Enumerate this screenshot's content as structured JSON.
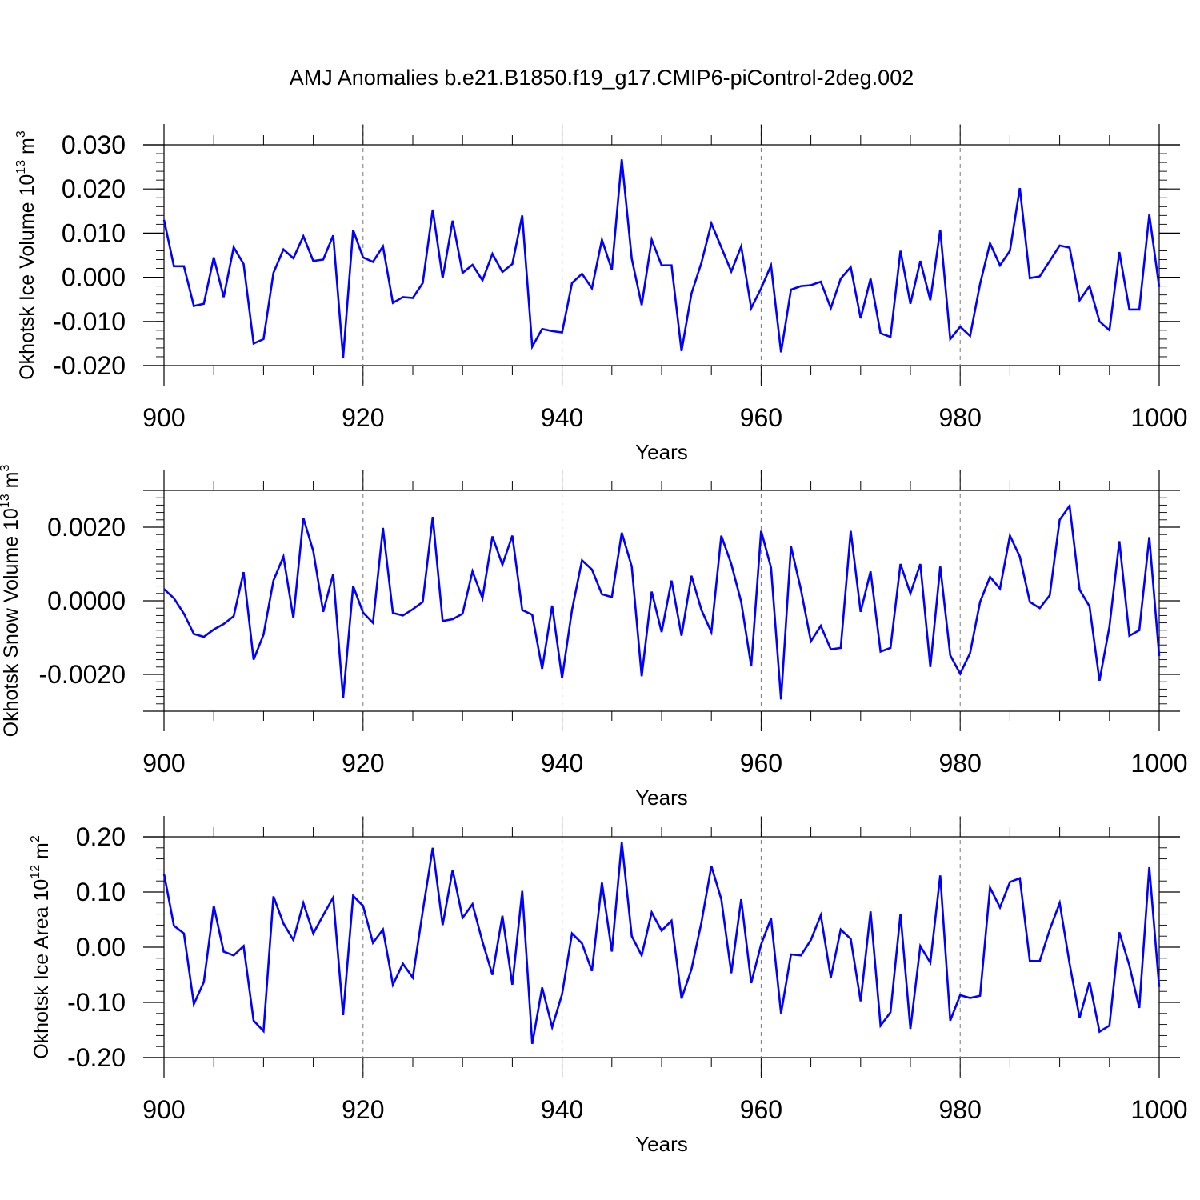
{
  "title": "AMJ Anomalies b.e21.B1850.f19_g17.CMIP6-piControl-2deg.002",
  "line_color": "#0000ff",
  "chart_data": [
    {
      "type": "line",
      "ylabel_main": "Okhotsk Ice Volume 10",
      "ylabel_exp": "13",
      "ylabel_unit": " m",
      "ylabel_unit_exp": "3",
      "xlabel": "Years",
      "xlim": [
        900,
        1000
      ],
      "ylim": [
        -0.02,
        0.03
      ],
      "xticks": [
        "900",
        "920",
        "940",
        "960",
        "980",
        "1000"
      ],
      "yticks": [
        {
          "v": 0.03,
          "label": "0.030"
        },
        {
          "v": 0.02,
          "label": "0.020"
        },
        {
          "v": 0.01,
          "label": "0.010"
        },
        {
          "v": 0.0,
          "label": "0.000"
        },
        {
          "v": -0.01,
          "label": "-0.010"
        },
        {
          "v": -0.02,
          "label": "-0.020"
        }
      ],
      "x_start": 900,
      "values": [
        0.013,
        0.0025,
        0.0025,
        -0.0065,
        -0.006,
        0.0045,
        -0.0045,
        0.0068,
        0.003,
        -0.015,
        -0.014,
        0.001,
        0.0063,
        0.0043,
        0.0093,
        0.0037,
        0.004,
        0.0095,
        -0.0182,
        0.0107,
        0.0045,
        0.0035,
        0.007,
        -0.0058,
        -0.0045,
        -0.0047,
        -0.0013,
        0.0153,
        -0.0002,
        0.0128,
        0.001,
        0.0028,
        -0.0007,
        0.0053,
        0.0012,
        0.003,
        0.014,
        -0.0157,
        -0.0117,
        -0.0122,
        -0.0125,
        -0.0013,
        0.0008,
        -0.0025,
        0.0085,
        0.0017,
        0.0267,
        0.0042,
        -0.0063,
        0.0085,
        0.0027,
        0.0027,
        -0.0167,
        -0.0037,
        0.0033,
        0.0122,
        0.0068,
        0.0013,
        0.007,
        -0.007,
        -0.0025,
        0.0027,
        -0.017,
        -0.0028,
        -0.002,
        -0.0018,
        -0.001,
        -0.007,
        -0.0003,
        0.0023,
        -0.0093,
        -0.0003,
        -0.0127,
        -0.0135,
        0.006,
        -0.006,
        0.0037,
        -0.0052,
        0.0107,
        -0.014,
        -0.0112,
        -0.0133,
        -0.0015,
        0.0077,
        0.0027,
        0.006,
        0.0202,
        -0.0002,
        0.0002,
        0.0037,
        0.0072,
        0.0067,
        -0.0052,
        -0.002,
        -0.01,
        -0.012,
        0.0057,
        -0.0073,
        -0.0073,
        0.0142,
        -0.0022
      ]
    },
    {
      "type": "line",
      "ylabel_main": "Okhotsk Snow Volume 10",
      "ylabel_exp": "13",
      "ylabel_unit": " m",
      "ylabel_unit_exp": "3",
      "xlabel": "Years",
      "xlim": [
        900,
        1000
      ],
      "ylim": [
        -0.003,
        0.003
      ],
      "xticks": [
        "900",
        "920",
        "940",
        "960",
        "980",
        "1000"
      ],
      "yticks": [
        {
          "v": 0.002,
          "label": "0.0020"
        },
        {
          "v": 0.0,
          "label": "0.0000"
        },
        {
          "v": -0.002,
          "label": "-0.0020"
        }
      ],
      "x_start": 900,
      "values": [
        0.00032,
        7e-05,
        -0.00035,
        -0.0009,
        -0.00098,
        -0.00078,
        -0.00063,
        -0.00042,
        0.00078,
        -0.0016,
        -0.00092,
        0.00055,
        0.0012,
        -0.00047,
        0.00225,
        0.00135,
        -0.0003,
        0.00073,
        -0.00265,
        0.0004,
        -0.00032,
        -0.0006,
        0.00198,
        -0.00033,
        -0.0004,
        -0.00023,
        -3e-05,
        0.00228,
        -0.00055,
        -0.0005,
        -0.00035,
        0.0008,
        7e-05,
        0.00175,
        0.00098,
        0.00177,
        -0.00025,
        -0.00038,
        -0.00185,
        -0.00013,
        -0.0021,
        -0.00025,
        0.0011,
        0.00085,
        0.00018,
        0.0001,
        0.00185,
        0.00093,
        -0.00205,
        0.00025,
        -0.00085,
        0.00055,
        -0.00095,
        0.00068,
        -0.00025,
        -0.00085,
        0.00177,
        0.001,
        -3e-05,
        -0.00178,
        0.0019,
        0.0009,
        -0.00268,
        0.00148,
        0.0003,
        -0.0011,
        -0.00068,
        -0.00132,
        -0.00128,
        0.0019,
        -0.0003,
        0.0008,
        -0.00138,
        -0.00128,
        0.001,
        0.0002,
        0.001,
        -0.0018,
        0.00093,
        -0.00148,
        -0.00198,
        -0.00142,
        -3e-05,
        0.00065,
        0.00033,
        0.00177,
        0.0012,
        -3e-05,
        -0.0002,
        0.00015,
        0.0022,
        0.00258,
        0.0003,
        -0.00015,
        -0.00217,
        -0.0007,
        0.00162,
        -0.00095,
        -0.0008,
        0.00173,
        -0.0015
      ]
    },
    {
      "type": "line",
      "ylabel_main": "Okhotsk Ice Area 10",
      "ylabel_exp": "12",
      "ylabel_unit": " m",
      "ylabel_unit_exp": "2",
      "xlabel": "Years",
      "xlim": [
        900,
        1000
      ],
      "ylim": [
        -0.2,
        0.2
      ],
      "xticks": [
        "900",
        "920",
        "940",
        "960",
        "980",
        "1000"
      ],
      "yticks": [
        {
          "v": 0.2,
          "label": "0.20"
        },
        {
          "v": 0.1,
          "label": "0.10"
        },
        {
          "v": 0.0,
          "label": "0.00"
        },
        {
          "v": -0.1,
          "label": "-0.10"
        },
        {
          "v": -0.2,
          "label": "-0.20"
        }
      ],
      "x_start": 900,
      "values": [
        0.133,
        0.039,
        0.025,
        -0.103,
        -0.063,
        0.075,
        -0.008,
        -0.015,
        0.002,
        -0.133,
        -0.152,
        0.092,
        0.043,
        0.013,
        0.08,
        0.025,
        0.058,
        0.09,
        -0.123,
        0.093,
        0.075,
        0.008,
        0.032,
        -0.068,
        -0.03,
        -0.055,
        0.065,
        0.18,
        0.04,
        0.14,
        0.053,
        0.078,
        0.01,
        -0.05,
        0.057,
        -0.068,
        0.102,
        -0.175,
        -0.073,
        -0.145,
        -0.085,
        0.025,
        0.007,
        -0.043,
        0.117,
        -0.008,
        0.19,
        0.02,
        -0.015,
        0.063,
        0.03,
        0.048,
        -0.093,
        -0.04,
        0.045,
        0.147,
        0.087,
        -0.047,
        0.087,
        -0.065,
        0.005,
        0.052,
        -0.12,
        -0.013,
        -0.015,
        0.013,
        0.058,
        -0.055,
        0.032,
        0.015,
        -0.098,
        0.065,
        -0.142,
        -0.118,
        0.06,
        -0.148,
        0.002,
        -0.028,
        0.13,
        -0.133,
        -0.087,
        -0.092,
        -0.088,
        0.108,
        0.072,
        0.118,
        0.125,
        -0.025,
        -0.025,
        0.032,
        0.08,
        -0.03,
        -0.128,
        -0.063,
        -0.153,
        -0.142,
        0.027,
        -0.033,
        -0.11,
        0.145,
        -0.072
      ]
    }
  ]
}
